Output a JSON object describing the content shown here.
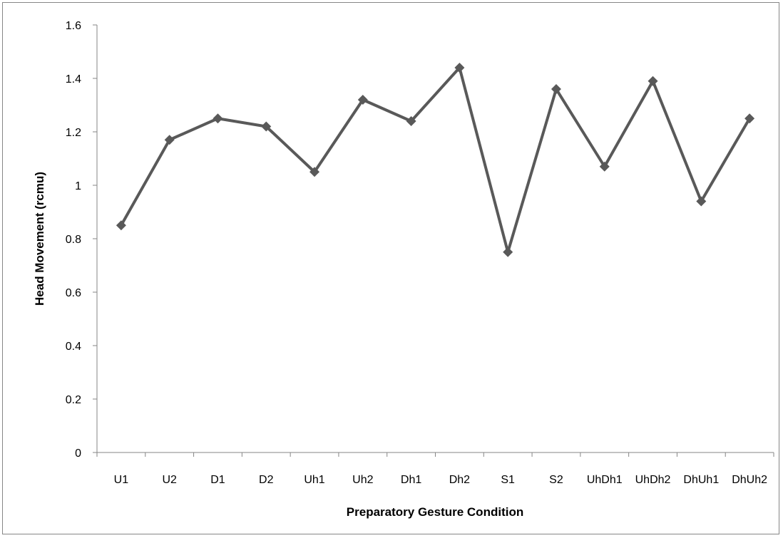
{
  "chart_data": {
    "type": "line",
    "title": "",
    "xlabel": "Preparatory Gesture Condition",
    "ylabel": "Head Movement (rcmu)",
    "categories": [
      "U1",
      "U2",
      "D1",
      "D2",
      "Uh1",
      "Uh2",
      "Dh1",
      "Dh2",
      "S1",
      "S2",
      "UhDh1",
      "UhDh2",
      "DhUh1",
      "DhUh2"
    ],
    "series": [
      {
        "values": [
          0.85,
          1.17,
          1.25,
          1.22,
          1.05,
          1.32,
          1.24,
          1.44,
          0.75,
          1.36,
          1.07,
          1.39,
          0.94,
          1.25
        ]
      }
    ],
    "ylim": [
      0,
      1.6
    ],
    "yticks": [
      "0",
      "0.2",
      "0.4",
      "0.6",
      "0.8",
      "1",
      "1.2",
      "1.4",
      "1.6"
    ],
    "grid": false,
    "legend": "none",
    "marker": "diamond",
    "line_color": "#595959",
    "marker_color": "#595959"
  }
}
